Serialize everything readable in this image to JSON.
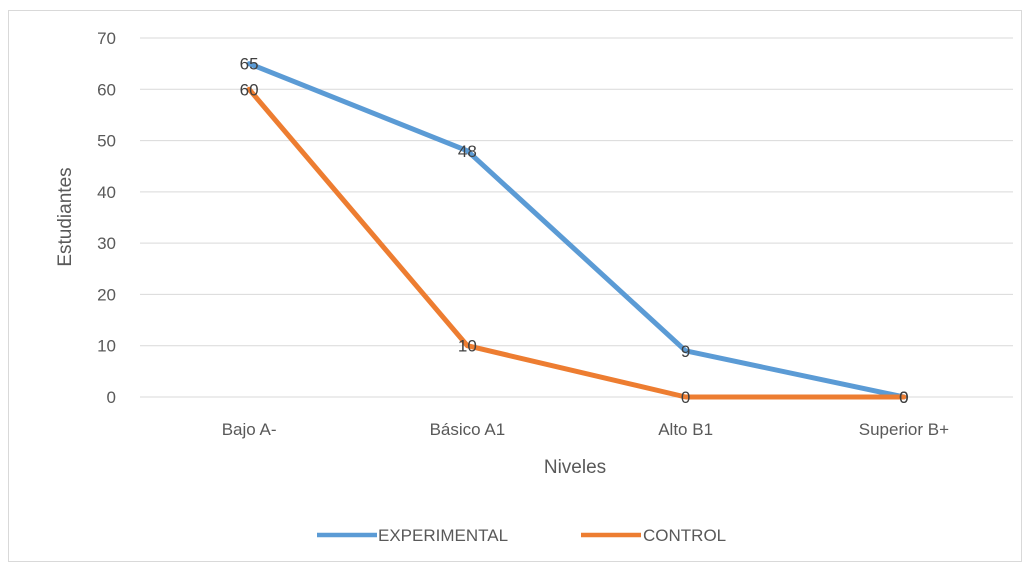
{
  "chart_data": {
    "type": "line",
    "title": "",
    "xlabel": "Niveles",
    "ylabel": "Estudiantes",
    "categories": [
      "Bajo A-",
      "Básico A1",
      "Alto B1",
      "Superior B+"
    ],
    "ylim": [
      0,
      70
    ],
    "yticks": [
      0,
      10,
      20,
      30,
      40,
      50,
      60,
      70
    ],
    "grid": true,
    "legend_position": "bottom",
    "series": [
      {
        "name": "EXPERIMENTAL",
        "values": [
          65,
          48,
          9,
          0
        ],
        "color": "#5b9bd5"
      },
      {
        "name": "CONTROL",
        "values": [
          60,
          10,
          0,
          0
        ],
        "color": "#ed7d31"
      }
    ]
  }
}
